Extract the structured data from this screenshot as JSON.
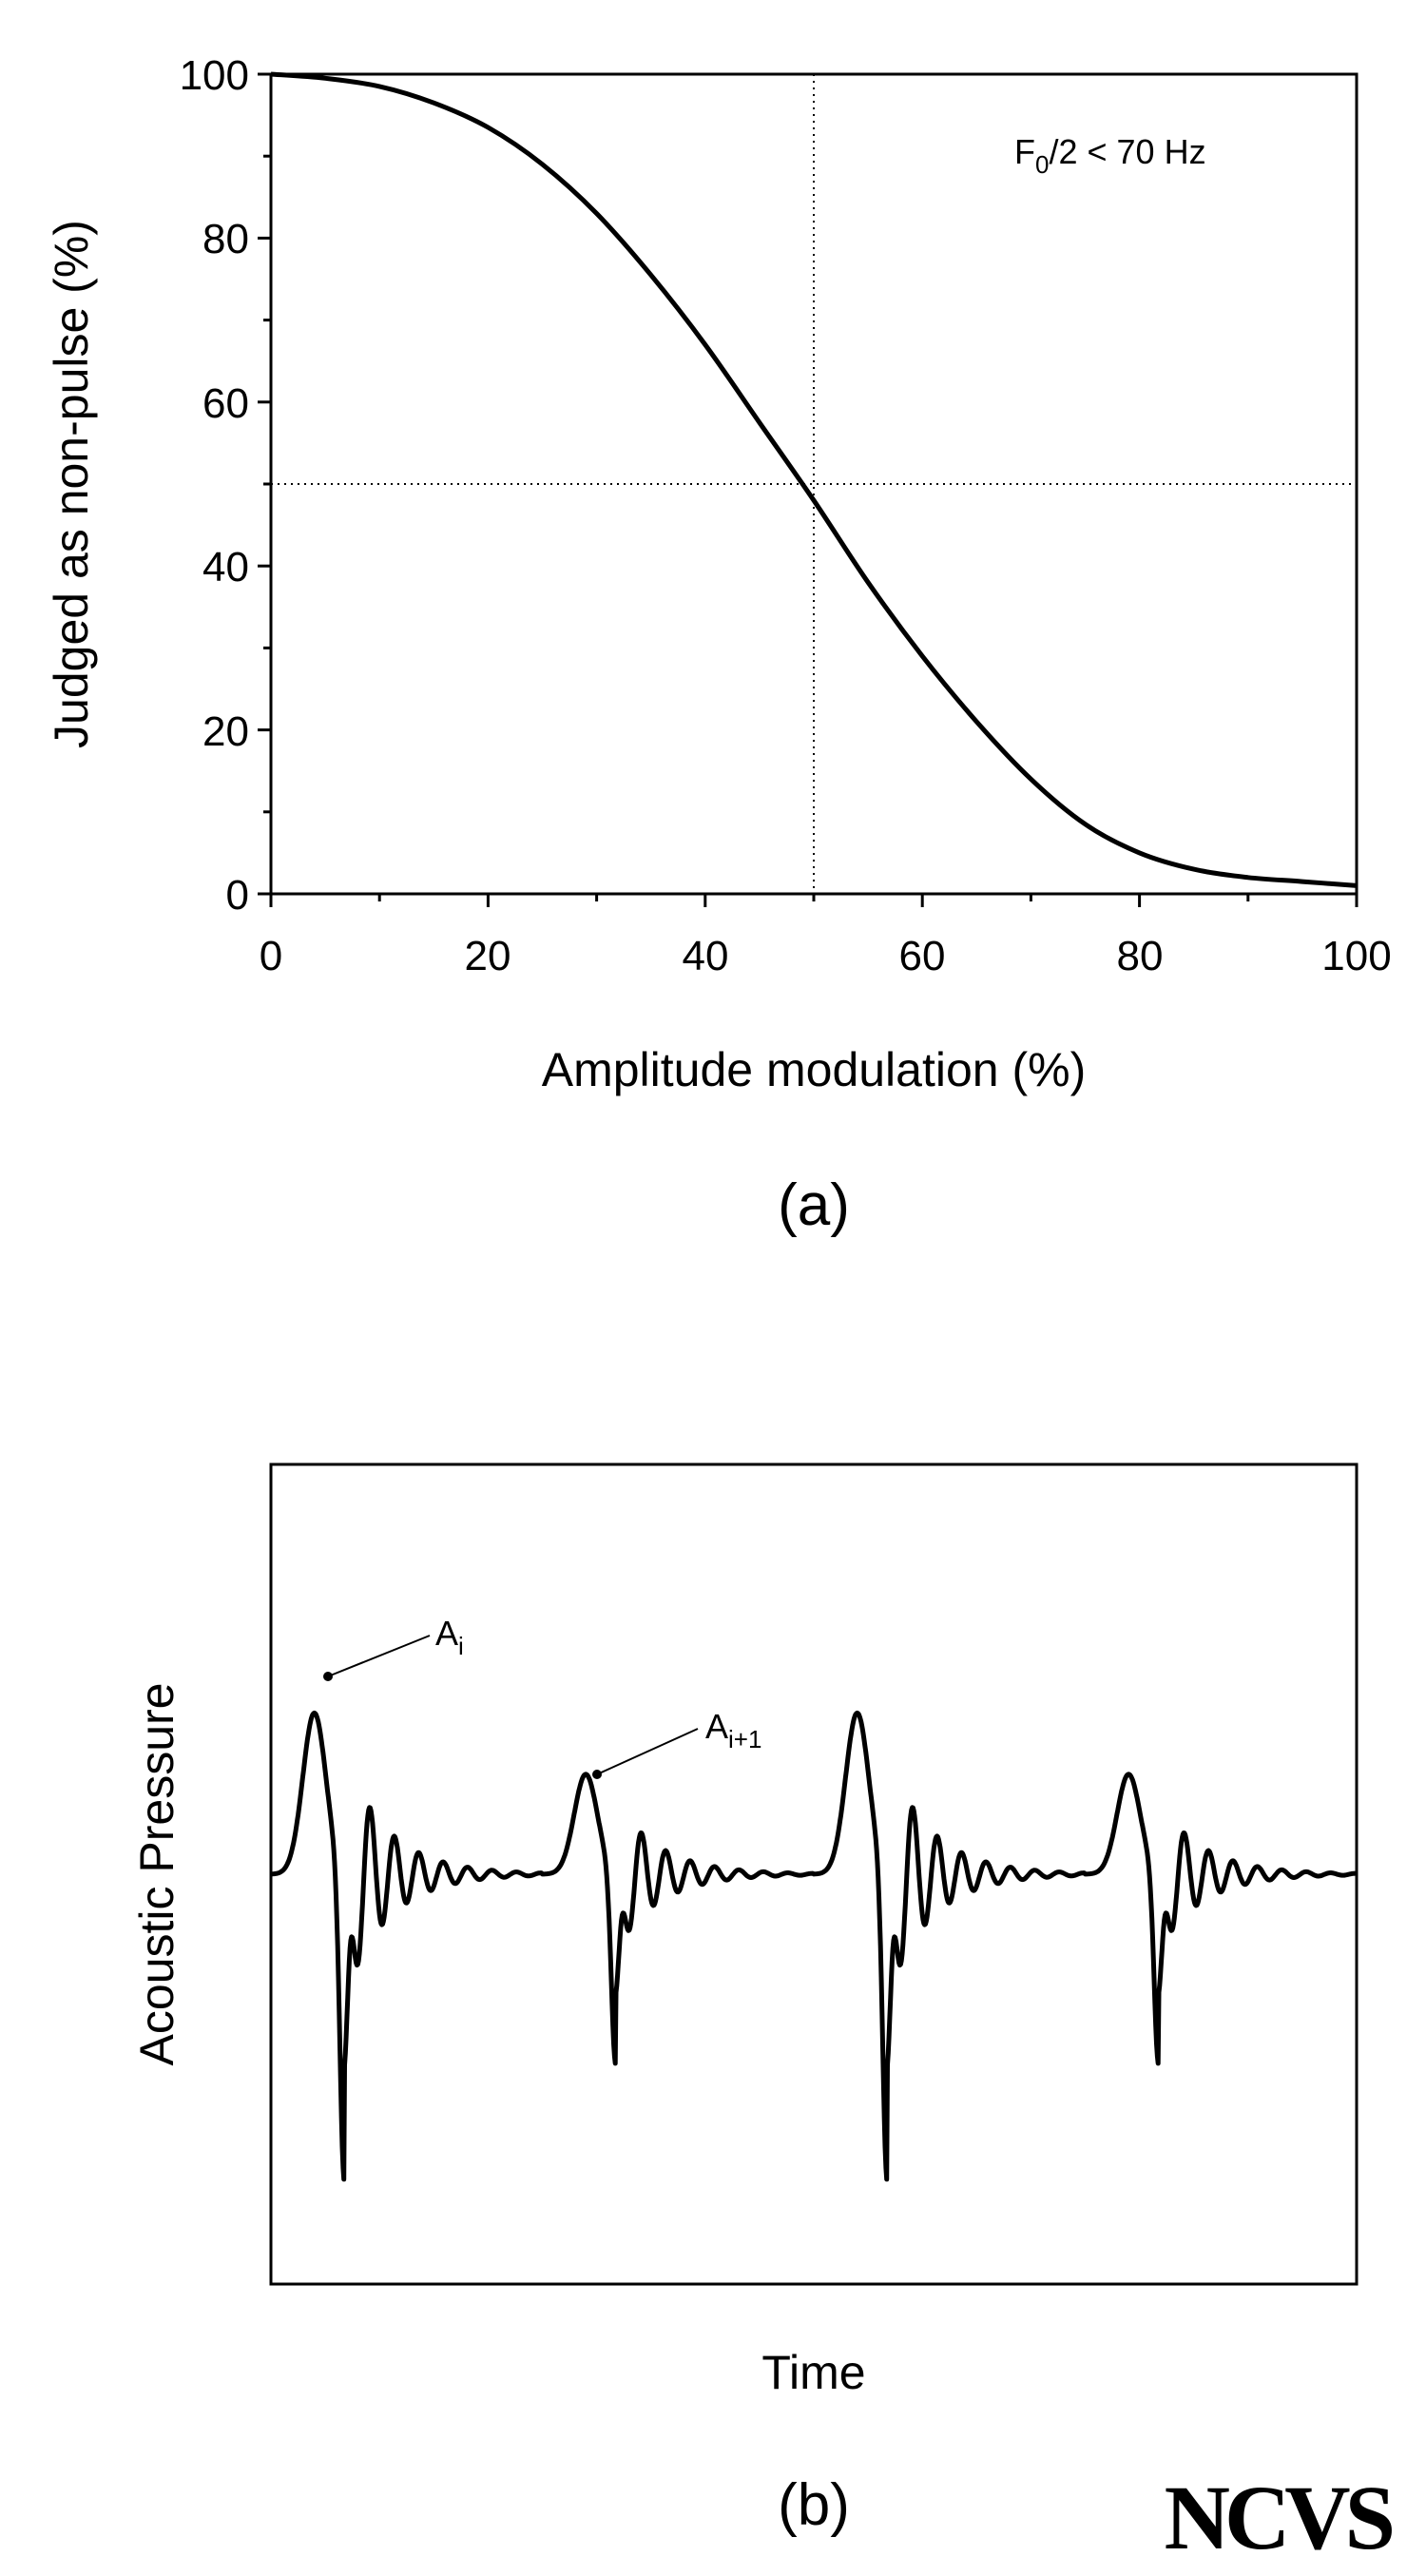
{
  "chart_data": [
    {
      "panel": "(a)",
      "type": "line",
      "xlabel": "Amplitude modulation (%)",
      "ylabel": "Judged as non-pulse (%)",
      "xlim": [
        0,
        100
      ],
      "ylim": [
        0,
        100
      ],
      "xticks": [
        0,
        20,
        40,
        60,
        80,
        100
      ],
      "yticks": [
        0,
        20,
        40,
        60,
        80,
        100
      ],
      "annotation": {
        "main": "F",
        "sub": "0",
        "rest": "/2 < 70 Hz"
      },
      "reference_lines": {
        "x": 50,
        "y": 50,
        "style": "dotted"
      },
      "grid": false,
      "series": [
        {
          "x": [
            0,
            5,
            10,
            15,
            20,
            25,
            30,
            35,
            40,
            45,
            50,
            55,
            60,
            65,
            70,
            75,
            80,
            85,
            90,
            95,
            100
          ],
          "y": [
            100,
            99.5,
            98.5,
            96.5,
            93.5,
            89,
            83,
            75.5,
            67,
            57.5,
            48,
            38,
            29,
            21,
            14,
            8.5,
            5,
            3,
            2,
            1.5,
            1
          ]
        }
      ]
    },
    {
      "panel": "(b)",
      "type": "line",
      "xlabel": "Time",
      "ylabel": "Acoustic Pressure",
      "annotations": [
        {
          "main": "A",
          "sub": "i"
        },
        {
          "main": "A",
          "sub": "i+1"
        }
      ],
      "series": [
        {
          "description_values": [
            0,
            1,
            3,
            0,
            -6,
            2,
            -2,
            1.2,
            -1,
            0.6,
            -0.5,
            0.3,
            0,
            1.7,
            -3.4,
            1,
            -1.1,
            0.6,
            -0.5,
            0.3,
            0,
            3.5,
            -6.3,
            2,
            -2,
            1.2,
            -1,
            0.6,
            -0.5,
            0.3,
            0,
            2,
            -3.2,
            1,
            -1,
            0.6,
            -0.4,
            0.3,
            0
          ]
        }
      ]
    }
  ],
  "logo": {
    "text": "NCVS"
  }
}
